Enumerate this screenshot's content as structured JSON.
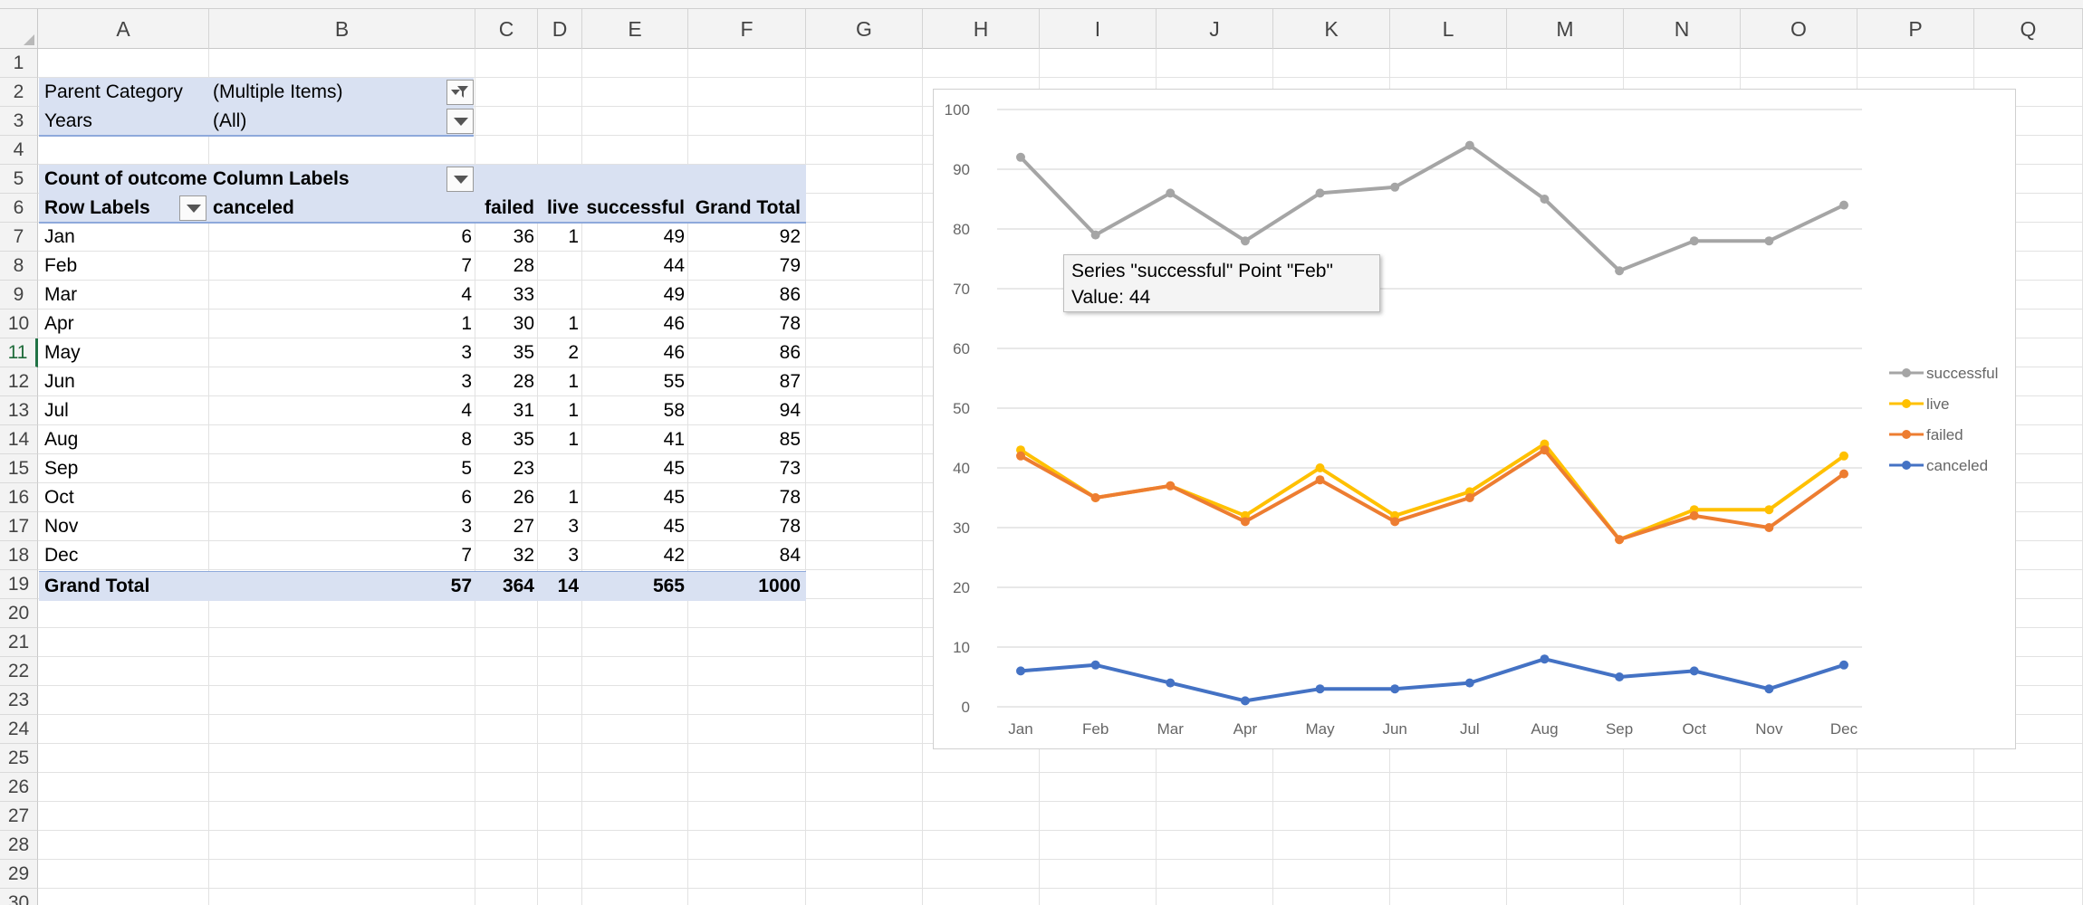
{
  "columns": [
    "A",
    "B",
    "C",
    "D",
    "E",
    "F",
    "G",
    "H",
    "I",
    "J",
    "K",
    "L",
    "M",
    "N",
    "O",
    "P",
    "Q"
  ],
  "rows": [
    "1",
    "2",
    "3",
    "4",
    "5",
    "6",
    "7",
    "8",
    "9",
    "10",
    "11",
    "12",
    "13",
    "14",
    "15",
    "16",
    "17",
    "18",
    "19",
    "20",
    "21",
    "22",
    "23",
    "24",
    "25",
    "26",
    "27",
    "28",
    "29",
    "30"
  ],
  "active_row": "11",
  "filters": [
    {
      "label": "Parent Category",
      "value": "(Multiple Items)",
      "filtered": true
    },
    {
      "label": "Years",
      "value": "(All)",
      "filtered": false
    }
  ],
  "pivot": {
    "value_field": "Count of outcome",
    "column_labels": "Column Labels",
    "row_labels": "Row Labels",
    "headers": [
      "canceled",
      "failed",
      "live",
      "successful",
      "Grand Total"
    ],
    "rows": [
      {
        "month": "Jan",
        "canceled": "6",
        "failed": "36",
        "live": "1",
        "successful": "49",
        "total": "92"
      },
      {
        "month": "Feb",
        "canceled": "7",
        "failed": "28",
        "live": "",
        "successful": "44",
        "total": "79"
      },
      {
        "month": "Mar",
        "canceled": "4",
        "failed": "33",
        "live": "",
        "successful": "49",
        "total": "86"
      },
      {
        "month": "Apr",
        "canceled": "1",
        "failed": "30",
        "live": "1",
        "successful": "46",
        "total": "78"
      },
      {
        "month": "May",
        "canceled": "3",
        "failed": "35",
        "live": "2",
        "successful": "46",
        "total": "86"
      },
      {
        "month": "Jun",
        "canceled": "3",
        "failed": "28",
        "live": "1",
        "successful": "55",
        "total": "87"
      },
      {
        "month": "Jul",
        "canceled": "4",
        "failed": "31",
        "live": "1",
        "successful": "58",
        "total": "94"
      },
      {
        "month": "Aug",
        "canceled": "8",
        "failed": "35",
        "live": "1",
        "successful": "41",
        "total": "85"
      },
      {
        "month": "Sep",
        "canceled": "5",
        "failed": "23",
        "live": "",
        "successful": "45",
        "total": "73"
      },
      {
        "month": "Oct",
        "canceled": "6",
        "failed": "26",
        "live": "1",
        "successful": "45",
        "total": "78"
      },
      {
        "month": "Nov",
        "canceled": "3",
        "failed": "27",
        "live": "3",
        "successful": "45",
        "total": "78"
      },
      {
        "month": "Dec",
        "canceled": "7",
        "failed": "32",
        "live": "3",
        "successful": "42",
        "total": "84"
      }
    ],
    "grand_total": {
      "label": "Grand Total",
      "canceled": "57",
      "failed": "364",
      "live": "14",
      "successful": "565",
      "total": "1000"
    }
  },
  "tooltip": {
    "line1": "Series \"successful\" Point \"Feb\"",
    "line2": "Value: 44"
  },
  "chart_data": {
    "type": "line",
    "categories": [
      "Jan",
      "Feb",
      "Mar",
      "Apr",
      "May",
      "Jun",
      "Jul",
      "Aug",
      "Sep",
      "Oct",
      "Nov",
      "Dec"
    ],
    "ylim": [
      0,
      100
    ],
    "yticks": [
      0,
      10,
      20,
      30,
      40,
      50,
      60,
      70,
      80,
      90,
      100
    ],
    "grid": true,
    "legend": "right",
    "series": [
      {
        "name": "successful",
        "color": "#a5a5a5",
        "values": [
          92,
          79,
          86,
          78,
          86,
          87,
          94,
          85,
          73,
          78,
          78,
          84
        ]
      },
      {
        "name": "live",
        "color": "#ffc000",
        "values": [
          43,
          35,
          37,
          32,
          40,
          32,
          36,
          44,
          28,
          33,
          33,
          42
        ]
      },
      {
        "name": "failed",
        "color": "#ed7d31",
        "values": [
          42,
          35,
          37,
          31,
          38,
          31,
          35,
          43,
          28,
          32,
          30,
          39
        ]
      },
      {
        "name": "canceled",
        "color": "#4472c4",
        "values": [
          6,
          7,
          4,
          1,
          3,
          3,
          4,
          8,
          5,
          6,
          3,
          7
        ]
      }
    ]
  }
}
